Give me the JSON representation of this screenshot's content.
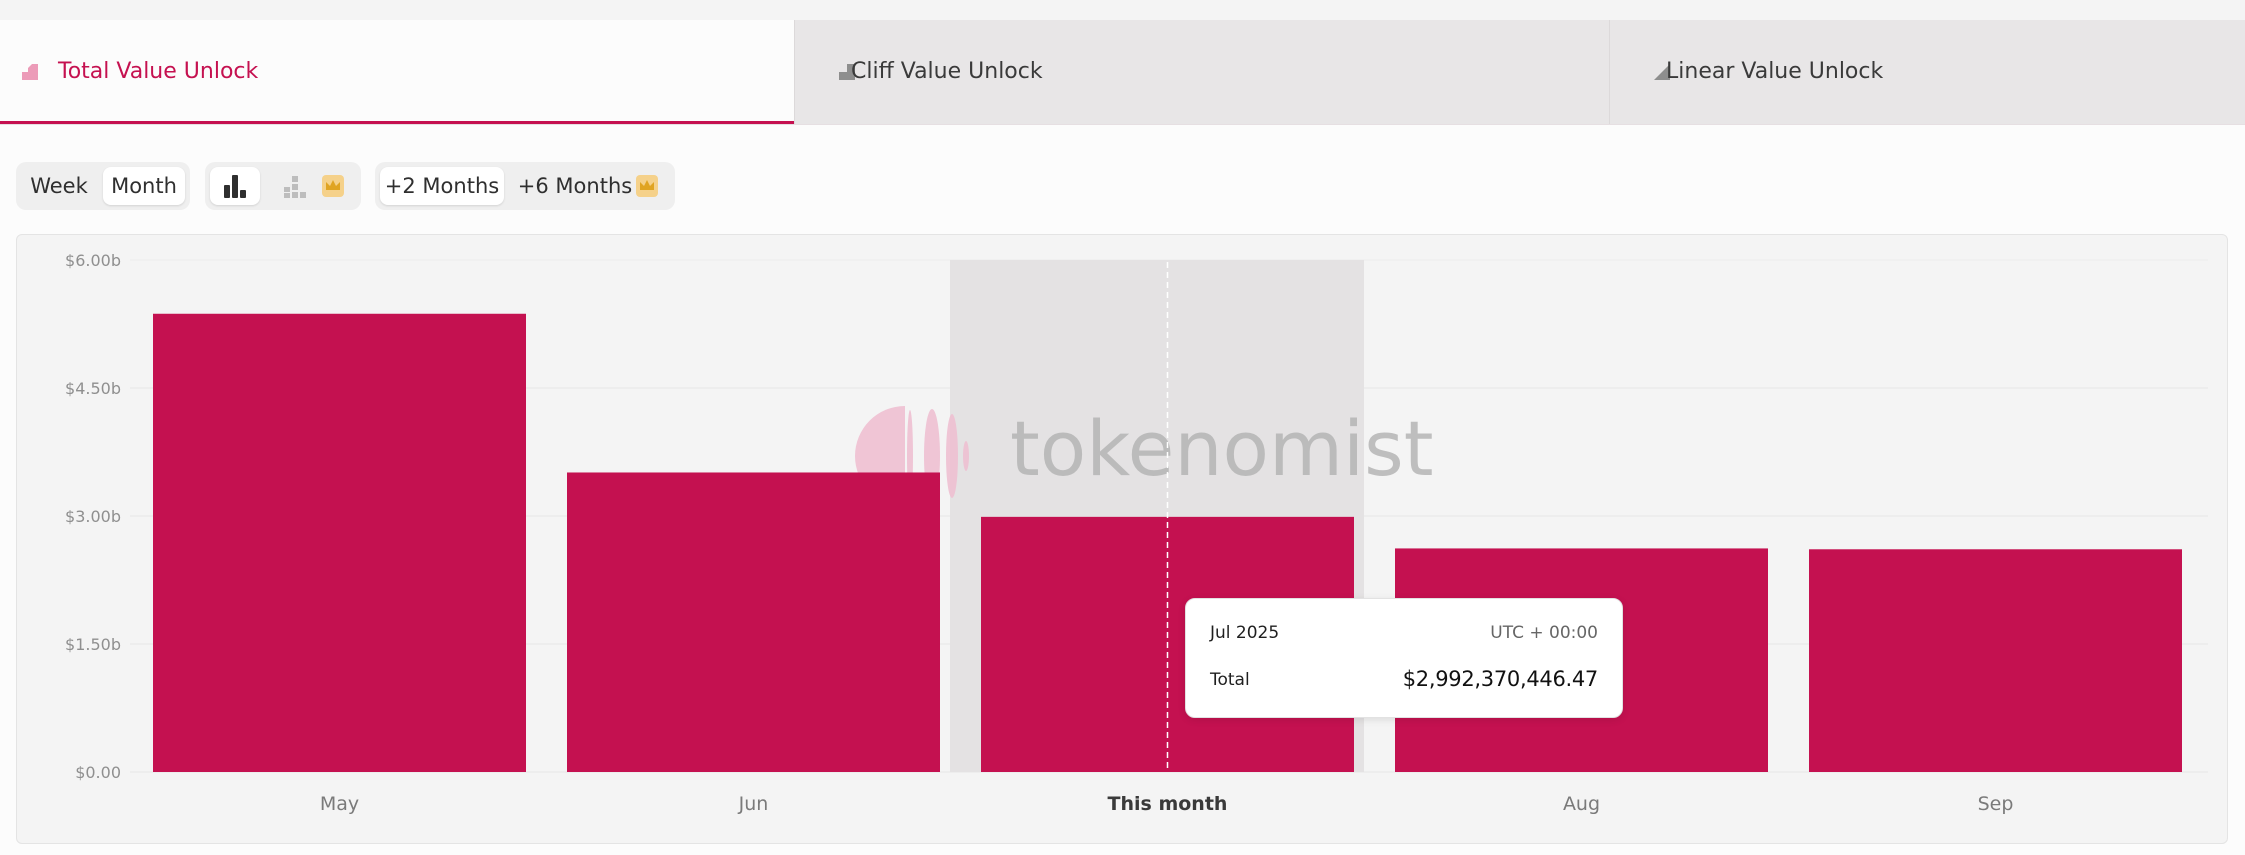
{
  "tabs": [
    {
      "label": "Total Value Unlock",
      "active": true,
      "icon": "total-unlock-icon"
    },
    {
      "label": "Cliff Value Unlock",
      "active": false,
      "icon": "cliff-unlock-icon"
    },
    {
      "label": "Linear Value Unlock",
      "active": false,
      "icon": "linear-unlock-icon"
    }
  ],
  "controls": {
    "granularity": [
      "Week",
      "Month"
    ],
    "granularity_selected": "Month",
    "chart_style_icons": [
      "bar-chart-icon",
      "stacked-bar-chart-icon",
      "crown-icon"
    ],
    "ranges": [
      "+2 Months",
      "+6 Months"
    ],
    "range_selected": "+2 Months"
  },
  "watermark": "tokenomist",
  "colors": {
    "accent": "#c51150",
    "bar": "#c41150",
    "highlight": "#e4e2e3",
    "crown": "#f0b43a"
  },
  "chart_data": {
    "type": "bar",
    "categories": [
      "May",
      "Jun",
      "This month",
      "Aug",
      "Sep"
    ],
    "values": [
      5.37,
      3.51,
      2.99,
      2.62,
      2.61
    ],
    "unit": "billions USD",
    "yticks": [
      "$0.00",
      "$1.50b",
      "$3.00b",
      "$4.50b",
      "$6.00b"
    ],
    "ylim": [
      0,
      6
    ],
    "highlighted_category": "This month",
    "grid": true,
    "legend": "none"
  },
  "tooltip": {
    "date": "Jul 2025",
    "timezone": "UTC + 00:00",
    "label": "Total",
    "value": "$2,992,370,446.47"
  }
}
